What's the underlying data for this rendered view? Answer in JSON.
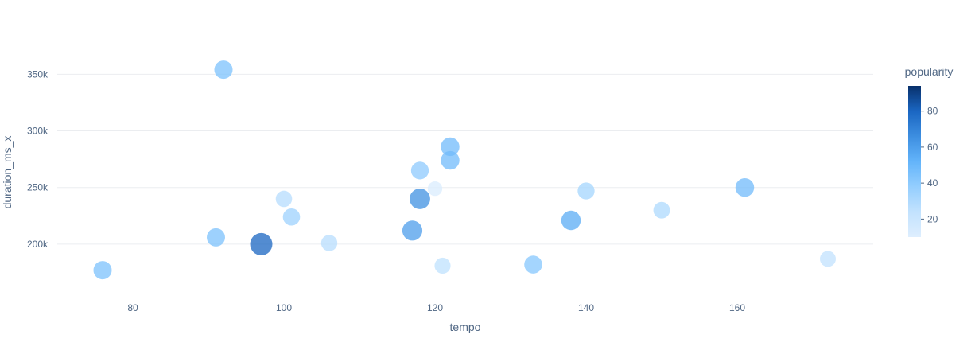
{
  "chart_data": {
    "type": "scatter",
    "title": "",
    "xlabel": "tempo",
    "ylabel": "duration_ms_x",
    "xlim": [
      70,
      178
    ],
    "ylim": [
      155000,
      372000
    ],
    "x_ticks": [
      80,
      100,
      120,
      140,
      160
    ],
    "x_tick_labels": [
      "80",
      "100",
      "120",
      "140",
      "160"
    ],
    "y_ticks": [
      200000,
      250000,
      300000,
      350000
    ],
    "y_tick_labels": [
      "200k",
      "250k",
      "300k",
      "350k"
    ],
    "grid": true,
    "size_encoding": "popularity",
    "color_encoding": "popularity",
    "colorbar": {
      "title": "popularity",
      "range": [
        10,
        94
      ],
      "ticks": [
        20,
        40,
        60,
        80
      ],
      "tick_labels": [
        "20",
        "40",
        "60",
        "80"
      ],
      "colors": [
        "#deeefe",
        "#c2e2fe",
        "#94cefe",
        "#63b4fa",
        "#3d8ee0",
        "#1a66c2",
        "#08306b"
      ]
    },
    "points": [
      {
        "tempo": 76,
        "duration_ms_x": 177000,
        "popularity": 45
      },
      {
        "tempo": 91,
        "duration_ms_x": 206000,
        "popularity": 45
      },
      {
        "tempo": 92,
        "duration_ms_x": 354000,
        "popularity": 45
      },
      {
        "tempo": 97,
        "duration_ms_x": 200000,
        "popularity": 80
      },
      {
        "tempo": 100,
        "duration_ms_x": 240000,
        "popularity": 28
      },
      {
        "tempo": 101,
        "duration_ms_x": 224000,
        "popularity": 35
      },
      {
        "tempo": 106,
        "duration_ms_x": 201000,
        "popularity": 27
      },
      {
        "tempo": 117,
        "duration_ms_x": 212000,
        "popularity": 60
      },
      {
        "tempo": 118,
        "duration_ms_x": 265000,
        "popularity": 40
      },
      {
        "tempo": 118,
        "duration_ms_x": 240000,
        "popularity": 65
      },
      {
        "tempo": 120,
        "duration_ms_x": 249000,
        "popularity": 12
      },
      {
        "tempo": 121,
        "duration_ms_x": 181000,
        "popularity": 25
      },
      {
        "tempo": 122,
        "duration_ms_x": 286000,
        "popularity": 48
      },
      {
        "tempo": 122,
        "duration_ms_x": 274000,
        "popularity": 48
      },
      {
        "tempo": 133,
        "duration_ms_x": 182000,
        "popularity": 42
      },
      {
        "tempo": 138,
        "duration_ms_x": 221000,
        "popularity": 55
      },
      {
        "tempo": 140,
        "duration_ms_x": 247000,
        "popularity": 33
      },
      {
        "tempo": 150,
        "duration_ms_x": 230000,
        "popularity": 30
      },
      {
        "tempo": 161,
        "duration_ms_x": 250000,
        "popularity": 48
      },
      {
        "tempo": 172,
        "duration_ms_x": 187000,
        "popularity": 24
      }
    ]
  }
}
